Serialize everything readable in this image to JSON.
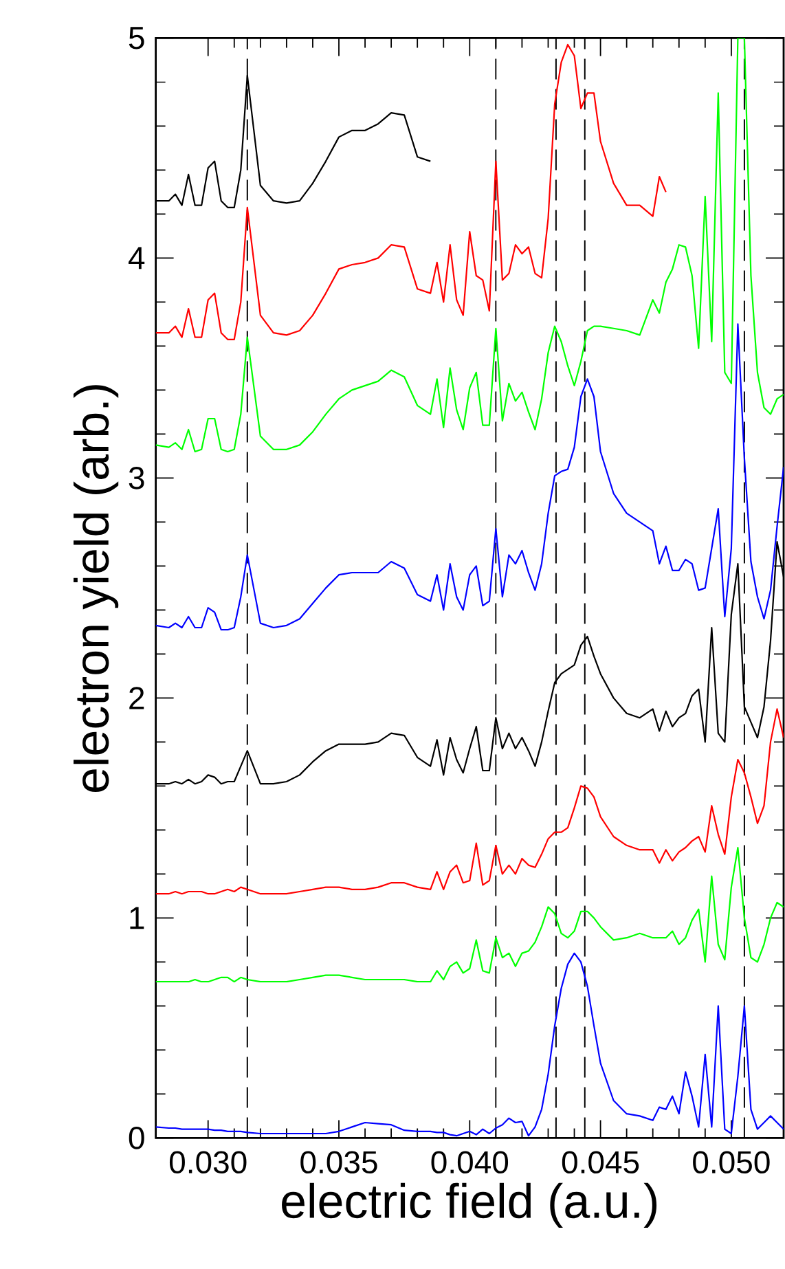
{
  "chart_data": {
    "type": "line",
    "xlabel": "electric field (a.u.)",
    "ylabel": "electron yield (arb.)",
    "xlim": [
      0.028,
      0.052
    ],
    "ylim": [
      0,
      5
    ],
    "xticks": [
      {
        "value": 0.03,
        "label": "0.030"
      },
      {
        "value": 0.035,
        "label": "0.035"
      },
      {
        "value": 0.04,
        "label": "0.040"
      },
      {
        "value": 0.045,
        "label": "0.045"
      },
      {
        "value": 0.05,
        "label": "0.050"
      }
    ],
    "yticks": [
      0,
      1,
      2,
      3,
      4,
      5
    ],
    "x": [
      0.028,
      0.0285,
      0.02875,
      0.029,
      0.02925,
      0.0295,
      0.02975,
      0.03,
      0.03025,
      0.0305,
      0.03075,
      0.031,
      0.03125,
      0.0315,
      0.032,
      0.0325,
      0.033,
      0.0335,
      0.034,
      0.0345,
      0.035,
      0.0355,
      0.036,
      0.0365,
      0.037,
      0.0375,
      0.038,
      0.0385,
      0.03875,
      0.039,
      0.03925,
      0.0395,
      0.03975,
      0.04,
      0.04025,
      0.0405,
      0.04075,
      0.041,
      0.04125,
      0.0415,
      0.04175,
      0.042,
      0.04225,
      0.0425,
      0.04275,
      0.043,
      0.04325,
      0.0435,
      0.04375,
      0.044,
      0.04425,
      0.0445,
      0.04475,
      0.045,
      0.0455,
      0.046,
      0.0465,
      0.047,
      0.04725,
      0.0475,
      0.04775,
      0.048,
      0.04825,
      0.0485,
      0.04875,
      0.049,
      0.04925,
      0.0495,
      0.04975,
      0.05,
      0.05025,
      0.0505,
      0.05075,
      0.051,
      0.05125,
      0.0515,
      0.05175,
      0.052
    ],
    "series": [
      {
        "color": "#000000",
        "values": [
          4.26,
          4.26,
          4.29,
          4.24,
          4.38,
          4.24,
          4.24,
          4.41,
          4.44,
          4.26,
          4.23,
          4.23,
          4.4,
          4.83,
          4.33,
          4.26,
          4.25,
          4.26,
          4.34,
          4.44,
          4.55,
          4.58,
          4.58,
          4.61,
          4.66,
          4.65,
          4.46,
          4.44,
          null,
          null,
          null,
          null,
          null,
          null,
          null,
          null,
          null,
          null,
          null,
          null,
          null,
          null,
          null,
          null,
          null,
          null,
          null,
          null,
          null,
          null,
          null,
          null,
          null,
          null,
          null,
          null,
          null,
          null,
          null,
          null,
          null,
          null,
          null,
          null,
          null,
          null,
          null,
          null,
          null,
          null,
          null,
          null,
          null,
          null,
          null,
          null,
          null,
          null
        ]
      },
      {
        "color": "#ff0000",
        "values": [
          3.66,
          3.66,
          3.69,
          3.64,
          3.77,
          3.64,
          3.64,
          3.81,
          3.84,
          3.66,
          3.63,
          3.63,
          3.8,
          4.23,
          3.74,
          3.66,
          3.65,
          3.67,
          3.74,
          3.84,
          3.95,
          3.97,
          3.98,
          4.0,
          4.06,
          4.05,
          3.86,
          3.84,
          3.98,
          3.8,
          4.06,
          3.81,
          3.74,
          4.12,
          3.92,
          3.9,
          3.76,
          4.44,
          3.9,
          3.93,
          4.06,
          4.02,
          4.05,
          3.93,
          3.91,
          4.18,
          4.7,
          4.89,
          4.97,
          4.92,
          4.68,
          4.75,
          4.75,
          4.53,
          4.34,
          4.24,
          4.24,
          4.19,
          4.37,
          4.3,
          null,
          null,
          null,
          null,
          null,
          null,
          null,
          null,
          null,
          null,
          null,
          null,
          null,
          null,
          null,
          null,
          null,
          null
        ]
      },
      {
        "color": "#00ff00",
        "values": [
          3.15,
          3.14,
          3.16,
          3.13,
          3.22,
          3.12,
          3.13,
          3.27,
          3.27,
          3.13,
          3.12,
          3.13,
          3.29,
          3.64,
          3.19,
          3.13,
          3.13,
          3.15,
          3.21,
          3.29,
          3.36,
          3.4,
          3.42,
          3.44,
          3.49,
          3.46,
          3.33,
          3.29,
          3.45,
          3.23,
          3.5,
          3.31,
          3.22,
          3.41,
          3.48,
          3.24,
          3.24,
          3.68,
          3.26,
          3.43,
          3.35,
          3.39,
          3.3,
          3.22,
          3.36,
          3.57,
          3.69,
          3.62,
          3.51,
          3.42,
          3.53,
          3.67,
          3.69,
          3.69,
          3.68,
          3.67,
          3.65,
          3.81,
          3.75,
          3.89,
          3.95,
          4.06,
          4.05,
          3.92,
          3.59,
          4.28,
          3.62,
          4.75,
          3.48,
          3.43,
          5.0,
          5.0,
          3.92,
          3.48,
          3.32,
          3.29,
          3.36,
          3.38
        ]
      },
      {
        "color": "#0000ff",
        "values": [
          2.33,
          2.32,
          2.34,
          2.32,
          2.37,
          2.32,
          2.32,
          2.41,
          2.39,
          2.31,
          2.31,
          2.32,
          2.46,
          2.65,
          2.34,
          2.32,
          2.33,
          2.36,
          2.43,
          2.5,
          2.56,
          2.57,
          2.57,
          2.57,
          2.62,
          2.59,
          2.47,
          2.44,
          2.56,
          2.4,
          2.61,
          2.46,
          2.4,
          2.56,
          2.6,
          2.42,
          2.44,
          2.77,
          2.46,
          2.65,
          2.61,
          2.67,
          2.57,
          2.49,
          2.61,
          2.84,
          3.01,
          3.03,
          3.04,
          3.14,
          3.37,
          3.45,
          3.37,
          3.12,
          2.93,
          2.84,
          2.8,
          2.76,
          2.61,
          2.69,
          2.58,
          2.58,
          2.63,
          2.61,
          2.49,
          2.5,
          2.68,
          2.86,
          2.37,
          2.68,
          3.7,
          3.09,
          2.62,
          2.46,
          2.36,
          2.49,
          2.78,
          3.05
        ]
      },
      {
        "color": "#000000",
        "values": [
          1.61,
          1.61,
          1.62,
          1.61,
          1.63,
          1.61,
          1.62,
          1.65,
          1.64,
          1.61,
          1.62,
          1.62,
          1.69,
          1.76,
          1.61,
          1.61,
          1.62,
          1.65,
          1.71,
          1.76,
          1.79,
          1.79,
          1.79,
          1.8,
          1.84,
          1.83,
          1.73,
          1.69,
          1.81,
          1.65,
          1.82,
          1.72,
          1.66,
          1.77,
          1.87,
          1.67,
          1.67,
          1.91,
          1.77,
          1.84,
          1.77,
          1.82,
          1.76,
          1.69,
          1.8,
          1.94,
          2.07,
          2.11,
          2.13,
          2.15,
          2.24,
          2.28,
          2.19,
          2.11,
          2.0,
          1.93,
          1.91,
          1.95,
          1.85,
          1.94,
          1.87,
          1.91,
          1.93,
          2.01,
          2.04,
          1.8,
          2.32,
          1.84,
          1.8,
          2.38,
          2.61,
          1.96,
          1.89,
          1.82,
          1.96,
          2.26,
          2.71,
          2.55
        ]
      },
      {
        "color": "#ff0000",
        "values": [
          1.11,
          1.11,
          1.12,
          1.11,
          1.12,
          1.12,
          1.12,
          1.11,
          1.11,
          1.12,
          1.13,
          1.12,
          1.14,
          1.13,
          1.11,
          1.11,
          1.11,
          1.12,
          1.13,
          1.14,
          1.14,
          1.13,
          1.13,
          1.14,
          1.16,
          1.16,
          1.14,
          1.13,
          1.21,
          1.13,
          1.21,
          1.24,
          1.16,
          1.17,
          1.34,
          1.15,
          1.17,
          1.33,
          1.2,
          1.24,
          1.2,
          1.27,
          1.24,
          1.23,
          1.29,
          1.36,
          1.39,
          1.39,
          1.41,
          1.5,
          1.6,
          1.59,
          1.55,
          1.46,
          1.37,
          1.33,
          1.31,
          1.31,
          1.25,
          1.31,
          1.26,
          1.3,
          1.32,
          1.35,
          1.37,
          1.3,
          1.51,
          1.38,
          1.29,
          1.55,
          1.72,
          1.66,
          1.55,
          1.43,
          1.51,
          1.8,
          1.95,
          1.82
        ]
      },
      {
        "color": "#00ff00",
        "values": [
          0.71,
          0.71,
          0.71,
          0.71,
          0.71,
          0.72,
          0.71,
          0.71,
          0.72,
          0.73,
          0.73,
          0.71,
          0.73,
          0.72,
          0.71,
          0.71,
          0.71,
          0.72,
          0.73,
          0.74,
          0.74,
          0.73,
          0.72,
          0.72,
          0.72,
          0.72,
          0.71,
          0.71,
          0.76,
          0.72,
          0.78,
          0.8,
          0.75,
          0.77,
          0.9,
          0.76,
          0.75,
          0.91,
          0.82,
          0.84,
          0.78,
          0.84,
          0.85,
          0.89,
          0.96,
          1.05,
          1.02,
          0.93,
          0.91,
          0.94,
          1.03,
          1.03,
          1.0,
          0.96,
          0.9,
          0.91,
          0.93,
          0.91,
          0.91,
          0.91,
          0.94,
          0.88,
          0.91,
          0.99,
          1.04,
          0.8,
          1.19,
          0.88,
          0.81,
          1.14,
          1.32,
          1.0,
          0.82,
          0.8,
          0.88,
          1.0,
          1.07,
          1.05
        ]
      },
      {
        "color": "#0000ff",
        "values": [
          0.05,
          0.045,
          0.045,
          0.04,
          0.04,
          0.04,
          0.04,
          0.04,
          0.035,
          0.035,
          0.03,
          0.03,
          0.03,
          0.025,
          0.02,
          0.02,
          0.02,
          0.02,
          0.02,
          0.02,
          0.03,
          0.05,
          0.07,
          0.065,
          0.06,
          0.035,
          0.03,
          0.03,
          0.025,
          0.025,
          0.015,
          0.01,
          0.02,
          0.03,
          0.015,
          0.04,
          0.02,
          0.045,
          0.06,
          0.09,
          0.07,
          0.075,
          0.01,
          0.05,
          0.13,
          0.29,
          0.51,
          0.68,
          0.79,
          0.84,
          0.8,
          0.69,
          0.51,
          0.34,
          0.17,
          0.11,
          0.1,
          0.08,
          0.14,
          0.13,
          0.19,
          0.11,
          0.3,
          0.19,
          0.05,
          0.38,
          0.05,
          0.6,
          0.04,
          0.02,
          0.28,
          0.6,
          0.13,
          0.04,
          0.07,
          0.1,
          0.07,
          0.04
        ]
      }
    ],
    "ref_lines": [
      {
        "axis": "x",
        "value": 0.0315,
        "color": "#000000",
        "line_style": "dashed"
      },
      {
        "axis": "x",
        "value": 0.041,
        "color": "#000000",
        "line_style": "dashed"
      },
      {
        "axis": "x",
        "value": 0.0433,
        "color": "#000000",
        "line_style": "dashed"
      },
      {
        "axis": "x",
        "value": 0.0444,
        "color": "#000000",
        "line_style": "dashed"
      },
      {
        "axis": "x",
        "value": 0.0505,
        "color": "#000000",
        "line_style": "dashed"
      }
    ]
  }
}
